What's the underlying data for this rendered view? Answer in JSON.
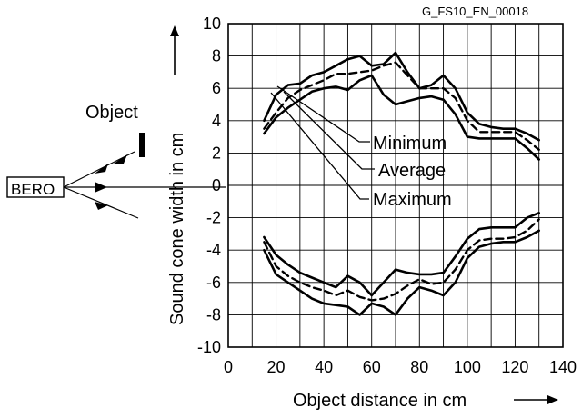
{
  "figure_code": "G_FS10_EN_00018",
  "diagram": {
    "device_label": "BERO",
    "object_label": "Object"
  },
  "chart_data": {
    "type": "line",
    "xlabel": "Object distance in cm",
    "ylabel": "Sound cone width in cm",
    "xlim": [
      0,
      140
    ],
    "ylim": [
      -10,
      10
    ],
    "xticks": [
      0,
      20,
      40,
      60,
      80,
      100,
      120,
      140
    ],
    "yticks": [
      -10,
      -8,
      -6,
      -4,
      -2,
      0,
      2,
      4,
      6,
      8,
      10
    ],
    "grid": true,
    "annotations": [
      "Minimum",
      "Average",
      "Maximum"
    ],
    "series": [
      {
        "name": "Maximum",
        "style": "solid",
        "branch": "upper",
        "points": [
          [
            15,
            4.0
          ],
          [
            20,
            5.6
          ],
          [
            25,
            6.2
          ],
          [
            30,
            6.3
          ],
          [
            35,
            6.8
          ],
          [
            40,
            7.0
          ],
          [
            45,
            7.4
          ],
          [
            50,
            7.8
          ],
          [
            55,
            8.0
          ],
          [
            60,
            7.4
          ],
          [
            65,
            7.5
          ],
          [
            70,
            8.2
          ],
          [
            75,
            7.0
          ],
          [
            80,
            6.0
          ],
          [
            85,
            6.2
          ],
          [
            90,
            6.8
          ],
          [
            95,
            6.0
          ],
          [
            100,
            4.5
          ],
          [
            105,
            3.8
          ],
          [
            110,
            3.6
          ],
          [
            115,
            3.5
          ],
          [
            120,
            3.5
          ],
          [
            125,
            3.2
          ],
          [
            130,
            2.8
          ]
        ]
      },
      {
        "name": "Average",
        "style": "dashed",
        "branch": "upper",
        "points": [
          [
            15,
            3.5
          ],
          [
            20,
            4.5
          ],
          [
            25,
            5.4
          ],
          [
            30,
            5.9
          ],
          [
            35,
            6.2
          ],
          [
            40,
            6.5
          ],
          [
            45,
            6.9
          ],
          [
            50,
            6.9
          ],
          [
            55,
            7.0
          ],
          [
            60,
            7.1
          ],
          [
            65,
            7.4
          ],
          [
            70,
            7.6
          ],
          [
            75,
            6.8
          ],
          [
            80,
            6.0
          ],
          [
            85,
            6.0
          ],
          [
            90,
            6.0
          ],
          [
            95,
            5.4
          ],
          [
            100,
            4.0
          ],
          [
            105,
            3.3
          ],
          [
            110,
            3.3
          ],
          [
            115,
            3.3
          ],
          [
            120,
            3.3
          ],
          [
            125,
            2.8
          ],
          [
            130,
            2.2
          ]
        ]
      },
      {
        "name": "Minimum",
        "style": "solid",
        "branch": "upper",
        "points": [
          [
            15,
            3.2
          ],
          [
            20,
            4.2
          ],
          [
            25,
            4.8
          ],
          [
            30,
            5.3
          ],
          [
            35,
            5.8
          ],
          [
            40,
            6.0
          ],
          [
            45,
            6.1
          ],
          [
            50,
            5.9
          ],
          [
            55,
            6.5
          ],
          [
            60,
            6.8
          ],
          [
            65,
            5.6
          ],
          [
            70,
            5.0
          ],
          [
            75,
            5.2
          ],
          [
            80,
            5.4
          ],
          [
            85,
            5.5
          ],
          [
            90,
            5.3
          ],
          [
            95,
            4.4
          ],
          [
            100,
            3.0
          ],
          [
            105,
            2.9
          ],
          [
            110,
            2.9
          ],
          [
            115,
            2.9
          ],
          [
            120,
            2.9
          ],
          [
            125,
            2.3
          ],
          [
            130,
            1.6
          ]
        ]
      },
      {
        "name": "Maximum",
        "style": "solid",
        "branch": "lower",
        "points": [
          [
            15,
            -4.0
          ],
          [
            20,
            -5.5
          ],
          [
            25,
            -6.0
          ],
          [
            30,
            -6.5
          ],
          [
            35,
            -7.0
          ],
          [
            40,
            -7.3
          ],
          [
            45,
            -7.4
          ],
          [
            50,
            -7.5
          ],
          [
            55,
            -8.0
          ],
          [
            60,
            -7.3
          ],
          [
            65,
            -7.5
          ],
          [
            70,
            -8.0
          ],
          [
            75,
            -7.0
          ],
          [
            80,
            -6.3
          ],
          [
            85,
            -6.5
          ],
          [
            90,
            -6.8
          ],
          [
            95,
            -6.0
          ],
          [
            100,
            -4.5
          ],
          [
            105,
            -3.8
          ],
          [
            110,
            -3.6
          ],
          [
            115,
            -3.5
          ],
          [
            120,
            -3.5
          ],
          [
            125,
            -3.2
          ],
          [
            130,
            -2.8
          ]
        ]
      },
      {
        "name": "Average",
        "style": "dashed",
        "branch": "lower",
        "points": [
          [
            15,
            -3.5
          ],
          [
            20,
            -5.0
          ],
          [
            25,
            -5.6
          ],
          [
            30,
            -6.0
          ],
          [
            35,
            -6.3
          ],
          [
            40,
            -6.5
          ],
          [
            45,
            -6.8
          ],
          [
            50,
            -6.5
          ],
          [
            55,
            -6.9
          ],
          [
            60,
            -7.1
          ],
          [
            65,
            -7.0
          ],
          [
            70,
            -6.7
          ],
          [
            75,
            -6.2
          ],
          [
            80,
            -5.8
          ],
          [
            85,
            -6.1
          ],
          [
            90,
            -6.0
          ],
          [
            95,
            -5.2
          ],
          [
            100,
            -4.0
          ],
          [
            105,
            -3.4
          ],
          [
            110,
            -3.3
          ],
          [
            115,
            -3.3
          ],
          [
            120,
            -3.2
          ],
          [
            125,
            -2.8
          ],
          [
            130,
            -2.1
          ]
        ]
      },
      {
        "name": "Minimum",
        "style": "solid",
        "branch": "lower",
        "points": [
          [
            15,
            -3.2
          ],
          [
            20,
            -4.3
          ],
          [
            25,
            -4.9
          ],
          [
            30,
            -5.4
          ],
          [
            35,
            -5.7
          ],
          [
            40,
            -6.0
          ],
          [
            45,
            -6.3
          ],
          [
            50,
            -5.6
          ],
          [
            55,
            -6.0
          ],
          [
            60,
            -6.8
          ],
          [
            65,
            -6.0
          ],
          [
            70,
            -5.2
          ],
          [
            75,
            -5.4
          ],
          [
            80,
            -5.5
          ],
          [
            85,
            -5.5
          ],
          [
            90,
            -5.4
          ],
          [
            95,
            -4.4
          ],
          [
            100,
            -3.3
          ],
          [
            105,
            -2.7
          ],
          [
            110,
            -2.6
          ],
          [
            115,
            -2.6
          ],
          [
            120,
            -2.6
          ],
          [
            125,
            -2.0
          ],
          [
            130,
            -1.7
          ]
        ]
      }
    ]
  }
}
